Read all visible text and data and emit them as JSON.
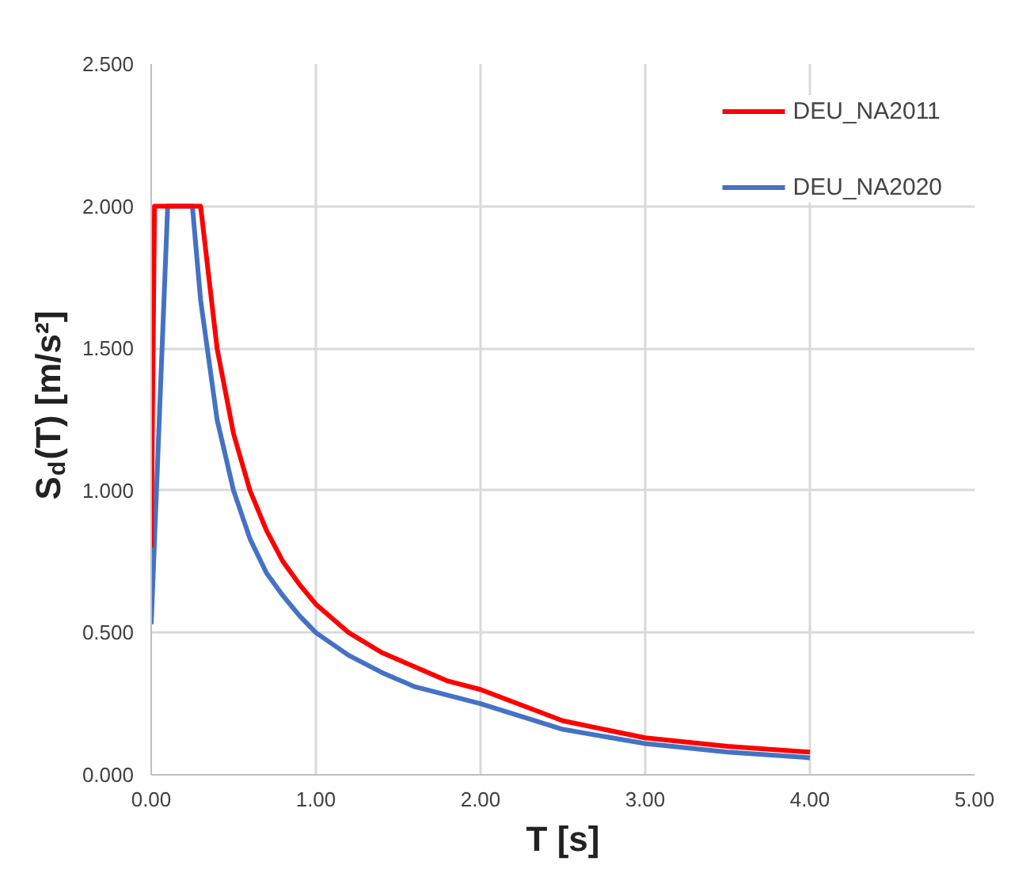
{
  "chart_data": {
    "type": "line",
    "xlabel": "T [s]",
    "ylabel": "S$_{d}$(T) [m/s²]",
    "xlim": [
      0,
      5
    ],
    "xticks": [
      {
        "value": 0,
        "label": "0.00"
      },
      {
        "value": 1,
        "label": "1.00"
      },
      {
        "value": 2,
        "label": "2.00"
      },
      {
        "value": 3,
        "label": "3.00"
      },
      {
        "value": 4,
        "label": "4.00"
      },
      {
        "value": 5,
        "label": "5.00"
      }
    ],
    "ylim": [
      0,
      2.5
    ],
    "yticks": [
      {
        "value": 0,
        "label": "0.000"
      },
      {
        "value": 0.5,
        "label": "0.500"
      },
      {
        "value": 1,
        "label": "1.000"
      },
      {
        "value": 1.5,
        "label": "1.500"
      },
      {
        "value": 2,
        "label": "2.000"
      },
      {
        "value": 2.5,
        "label": "2.500"
      }
    ],
    "grid": true,
    "legend": "top right",
    "line_style": "solid",
    "marker": "none",
    "series": [
      {
        "name": "DEU_NA2011",
        "color": "#ff0000",
        "x": [
          0,
          0.02,
          0.3,
          0.4,
          0.5,
          0.6,
          0.7,
          0.8,
          0.9,
          1.0,
          1.2,
          1.4,
          1.6,
          1.8,
          2.0,
          2.5,
          3.0,
          3.5,
          4.0
        ],
        "values": [
          0.8,
          2.0,
          2.0,
          1.5,
          1.2,
          1.0,
          0.86,
          0.75,
          0.67,
          0.6,
          0.5,
          0.43,
          0.38,
          0.33,
          0.3,
          0.19,
          0.13,
          0.1,
          0.08
        ]
      },
      {
        "name": "DEU_NA2020",
        "color": "#4472c4",
        "x": [
          0,
          0.1,
          0.25,
          0.3,
          0.4,
          0.5,
          0.6,
          0.7,
          0.8,
          0.9,
          1.0,
          1.2,
          1.4,
          1.6,
          1.8,
          2.0,
          2.5,
          3.0,
          3.5,
          4.0
        ],
        "values": [
          0.53,
          2.0,
          2.0,
          1.67,
          1.25,
          1.0,
          0.83,
          0.71,
          0.63,
          0.56,
          0.5,
          0.42,
          0.36,
          0.31,
          0.28,
          0.25,
          0.16,
          0.11,
          0.08,
          0.06
        ]
      }
    ]
  }
}
